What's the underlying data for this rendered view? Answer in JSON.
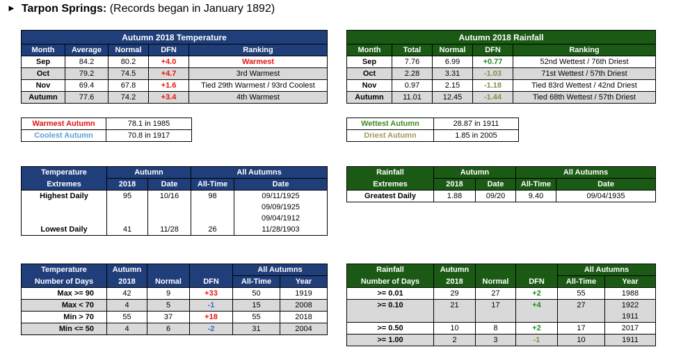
{
  "header": {
    "arrow": "►",
    "title": "Tarpon Springs:",
    "subtitle": "(Records began in January 1892)"
  },
  "temp": {
    "title": "Autumn 2018 Temperature",
    "cols": [
      "Month",
      "Average",
      "Normal",
      "DFN",
      "Ranking"
    ],
    "rows": [
      [
        "Sep",
        "84.2",
        "80.2",
        "+4.0",
        "Warmest"
      ],
      [
        "Oct",
        "79.2",
        "74.5",
        "+4.7",
        "3rd Warmest"
      ],
      [
        "Nov",
        "69.4",
        "67.8",
        "+1.6",
        "Tied 29th Warmest / 93rd Coolest"
      ],
      [
        "Autumn",
        "77.6",
        "74.2",
        "+3.4",
        "4th Warmest"
      ]
    ]
  },
  "rain": {
    "title": "Autumn 2018 Rainfall",
    "cols": [
      "Month",
      "Total",
      "Normal",
      "DFN",
      "Ranking"
    ],
    "rows": [
      [
        "Sep",
        "7.76",
        "6.99",
        "+0.77",
        "52nd Wettest / 76th Driest"
      ],
      [
        "Oct",
        "2.28",
        "3.31",
        "-1.03",
        "71st Wettest / 57th Driest"
      ],
      [
        "Nov",
        "0.97",
        "2.15",
        "-1.18",
        "Tied 83rd Wettest / 42nd Driest"
      ],
      [
        "Autumn",
        "11.01",
        "12.45",
        "-1.44",
        "Tied 68th Wettest / 57th Driest"
      ]
    ]
  },
  "temp_records": [
    [
      "Warmest Autumn",
      "78.1 in 1985"
    ],
    [
      "Coolest Autumn",
      "70.8 in 1917"
    ]
  ],
  "rain_records": [
    [
      "Wettest Autumn",
      "28.87 in 1911"
    ],
    [
      "Driest Autumn",
      "1.85 in 2005"
    ]
  ],
  "temp_ext": {
    "h1": "Temperature",
    "h2": "Extremes",
    "autumn": "Autumn",
    "all": "All Autumns",
    "sub": [
      "2018",
      "Date",
      "All-Time",
      "Date"
    ],
    "highest": {
      "label": "Highest Daily",
      "val": "95",
      "date": "10/16",
      "alltime": "98",
      "dates": [
        "09/11/1925",
        "09/09/1925",
        "09/04/1912"
      ]
    },
    "lowest": {
      "label": "Lowest Daily",
      "val": "41",
      "date": "11/28",
      "alltime": "26",
      "dates": [
        "11/28/1903"
      ]
    }
  },
  "rain_ext": {
    "h1": "Rainfall",
    "h2": "Extremes",
    "autumn": "Autumn",
    "all": "All Autumns",
    "sub": [
      "2018",
      "Date",
      "All-Time",
      "Date"
    ],
    "greatest": {
      "label": "Greatest Daily",
      "val": "1.88",
      "date": "09/20",
      "alltime": "9.40",
      "dates": [
        "09/04/1935"
      ]
    }
  },
  "temp_days": {
    "h1": "Temperature",
    "h2": "Number of Days",
    "autumn": "Autumn",
    "all": "All Autumns",
    "sub": [
      "2018",
      "Normal",
      "DFN",
      "All-Time",
      "Year"
    ],
    "rows": [
      [
        "Max >= 90",
        "42",
        "9",
        "+33",
        "50",
        "1919"
      ],
      [
        "Max < 70",
        "4",
        "5",
        "-1",
        "15",
        "2008"
      ],
      [
        "Min > 70",
        "55",
        "37",
        "+18",
        "55",
        "2018"
      ],
      [
        "Min <= 50",
        "4",
        "6",
        "-2",
        "31",
        "2004"
      ]
    ]
  },
  "rain_days": {
    "h1": "Rainfall",
    "h2": "Number of Days",
    "autumn": "Autumn",
    "all": "All Autumns",
    "sub": [
      "2018",
      "Normal",
      "DFN",
      "All-Time",
      "Year"
    ],
    "rows": [
      [
        ">= 0.01",
        "29",
        "27",
        "+2",
        "55",
        "1988"
      ],
      [
        ">= 0.10",
        "21",
        "17",
        "+4",
        "27",
        "1922"
      ],
      [
        "",
        "",
        "",
        "",
        "",
        "1911"
      ],
      [
        ">= 0.50",
        "10",
        "8",
        "+2",
        "17",
        "2017"
      ],
      [
        ">= 1.00",
        "2",
        "3",
        "-1",
        "10",
        "1911"
      ]
    ]
  },
  "colors": {
    "blue_header": "#1f3e7a",
    "green_header": "#1a5a14",
    "red": "#e8140e",
    "green": "#1d8a1d",
    "olive": "#8b8b48",
    "gray_row": "#d9d9d9"
  }
}
